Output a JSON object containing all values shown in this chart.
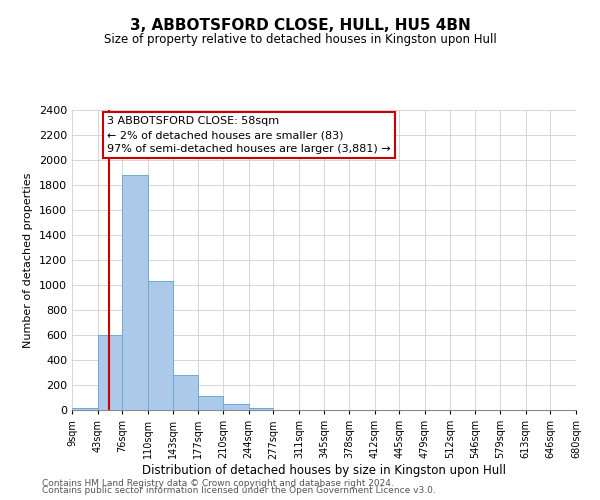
{
  "title": "3, ABBOTSFORD CLOSE, HULL, HU5 4BN",
  "subtitle": "Size of property relative to detached houses in Kingston upon Hull",
  "xlabel": "Distribution of detached houses by size in Kingston upon Hull",
  "ylabel": "Number of detached properties",
  "bar_edges": [
    9,
    43,
    76,
    110,
    143,
    177,
    210,
    244,
    277,
    311,
    345,
    378,
    412,
    445,
    479,
    512,
    546,
    579,
    613,
    646,
    680
  ],
  "bar_heights": [
    20,
    600,
    1880,
    1030,
    280,
    115,
    50,
    20,
    0,
    0,
    0,
    0,
    0,
    0,
    0,
    0,
    0,
    0,
    0,
    0
  ],
  "bar_color": "#adc9e9",
  "bar_edge_color": "#6aaad4",
  "property_line_x": 58,
  "property_line_color": "#cc0000",
  "annotation_line1": "3 ABBOTSFORD CLOSE: 58sqm",
  "annotation_line2": "← 2% of detached houses are smaller (83)",
  "annotation_line3": "97% of semi-detached houses are larger (3,881) →",
  "annotation_box_color": "#ffffff",
  "annotation_box_edge_color": "#cc0000",
  "ylim": [
    0,
    2400
  ],
  "yticks": [
    0,
    200,
    400,
    600,
    800,
    1000,
    1200,
    1400,
    1600,
    1800,
    2000,
    2200,
    2400
  ],
  "tick_labels": [
    "9sqm",
    "43sqm",
    "76sqm",
    "110sqm",
    "143sqm",
    "177sqm",
    "210sqm",
    "244sqm",
    "277sqm",
    "311sqm",
    "345sqm",
    "378sqm",
    "412sqm",
    "445sqm",
    "479sqm",
    "512sqm",
    "546sqm",
    "579sqm",
    "613sqm",
    "646sqm",
    "680sqm"
  ],
  "footer_line1": "Contains HM Land Registry data © Crown copyright and database right 2024.",
  "footer_line2": "Contains public sector information licensed under the Open Government Licence v3.0.",
  "background_color": "#ffffff",
  "grid_color": "#d0d0d0",
  "title_fontsize": 11,
  "subtitle_fontsize": 8.5,
  "ylabel_fontsize": 8,
  "xlabel_fontsize": 8.5,
  "ytick_fontsize": 8,
  "xtick_fontsize": 7,
  "annot_fontsize": 8,
  "footer_fontsize": 6.5
}
